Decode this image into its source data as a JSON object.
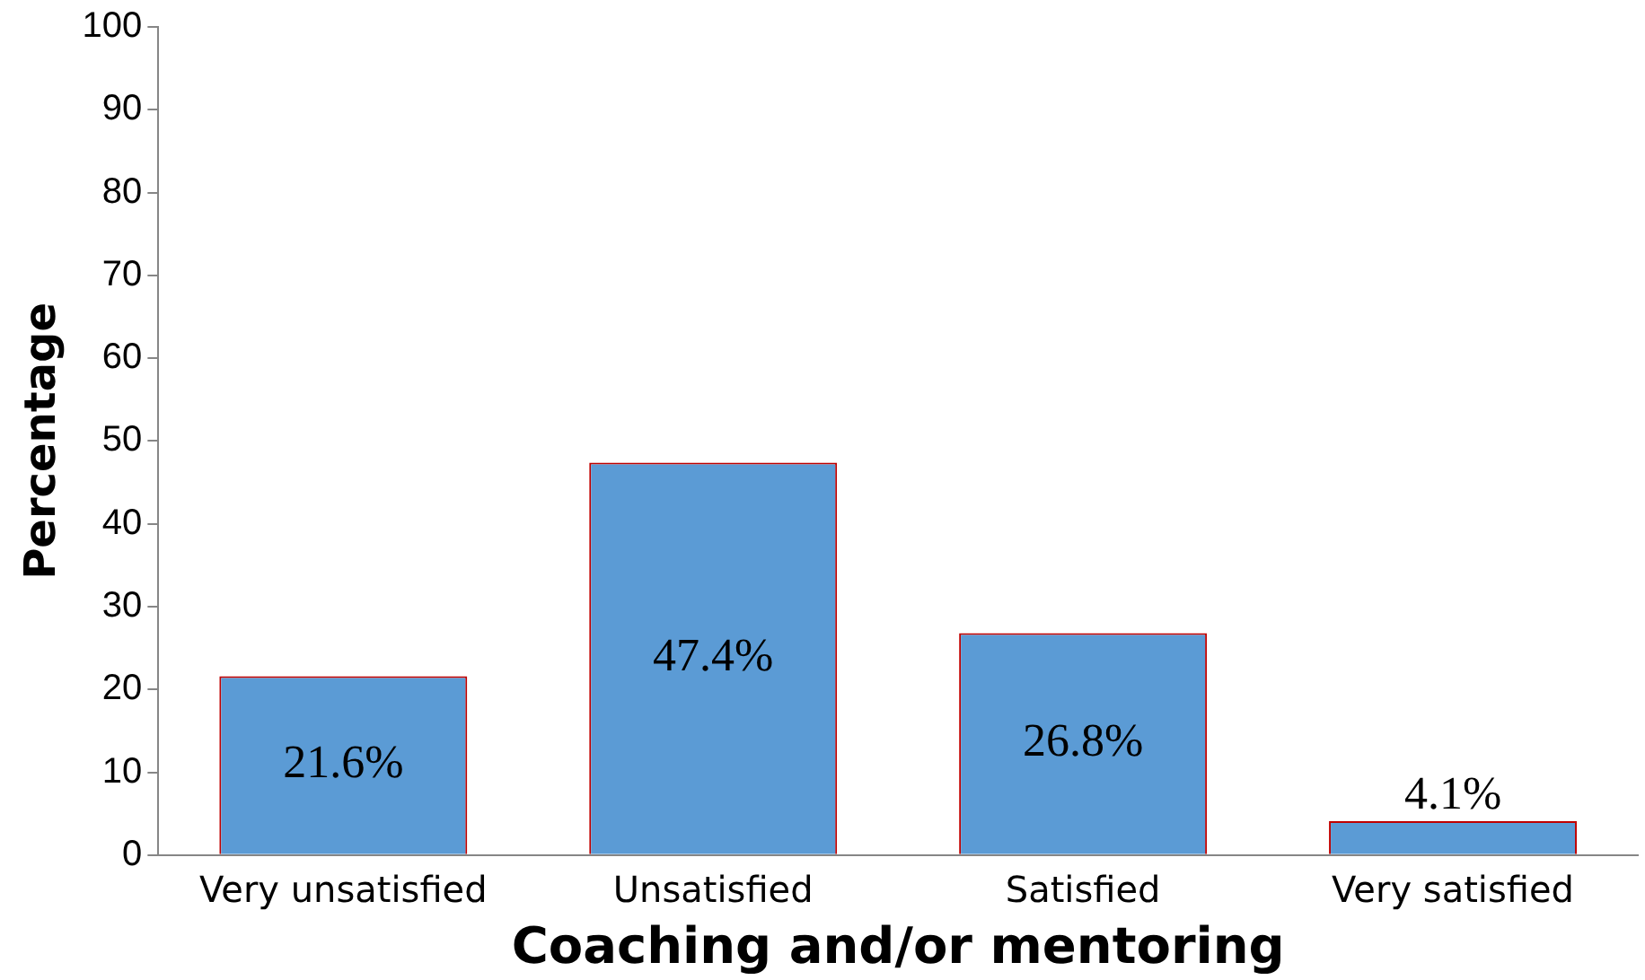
{
  "chart_data": {
    "type": "bar",
    "xlabel": "Coaching and/or mentoring",
    "ylabel": "Percentage",
    "categories": [
      "Very unsatisfied",
      "Unsatisfied",
      "Satisfied",
      "Very satisfied"
    ],
    "values": [
      21.6,
      47.4,
      26.8,
      4.1
    ],
    "value_labels": [
      "21.6%",
      "47.4%",
      "26.8%",
      "4.1%"
    ],
    "color": "#5b9bd5",
    "ylim": [
      0,
      100
    ],
    "yticks": [
      0,
      10,
      20,
      30,
      40,
      50,
      60,
      70,
      80,
      90,
      100
    ],
    "grid": false,
    "legend": false
  }
}
